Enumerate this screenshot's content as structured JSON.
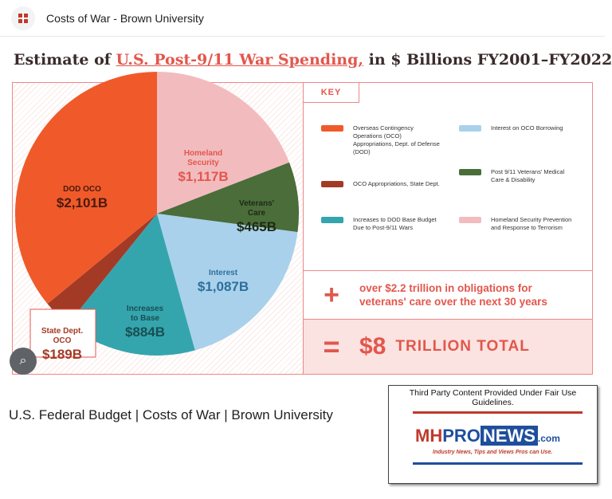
{
  "header": {
    "site": "Costs of War - Brown University"
  },
  "title": {
    "pre": "Estimate of ",
    "highlight": "U.S. Post-9/11 War Spending,",
    "post": " in $ Billions FY2001–FY2022"
  },
  "key": {
    "label": "KEY",
    "items": [
      {
        "text": "Overseas Contingency Operations (OCO) Appropriations, Dept. of Defense (DOD)",
        "color": "#f05a2a"
      },
      {
        "text": "OCO Appropriations, State Dept.",
        "color": "#a33a26"
      },
      {
        "text": "Increases to DOD Base Budget Due to Post-9/11 Wars",
        "color": "#35a5ad"
      },
      {
        "text": "Interest on OCO Borrowing",
        "color": "#a9d1ec"
      },
      {
        "text": "Post 9/11 Veterans' Medical Care & Disability",
        "color": "#4a6d3a"
      },
      {
        "text": "Homeland Security Prevention and Response to Terrorism",
        "color": "#f2bcbf"
      }
    ]
  },
  "plus": {
    "symbol": "+",
    "text": "over $2.2 trillion in obligations for veterans' care over the next 30 years"
  },
  "total": {
    "symbol": "=",
    "amount": "$8",
    "label": "TRILLION TOTAL"
  },
  "chart_data": {
    "type": "pie",
    "title": "Estimate of U.S. Post-9/11 War Spending, in $ Billions FY2001–FY2022",
    "units": "$ Billions",
    "slices": [
      {
        "label": "Homeland Security",
        "value": 1117,
        "display": "$1,117B",
        "color": "#f2bcbf",
        "text_color": "#e2574c"
      },
      {
        "label": "Veterans' Care",
        "value": 465,
        "display": "$465B",
        "color": "#4a6d3a",
        "text_color": "#1e2a14"
      },
      {
        "label": "Interest",
        "value": 1087,
        "display": "$1,087B",
        "color": "#a9d1ec",
        "text_color": "#2f6f9a"
      },
      {
        "label": "Increases to Base",
        "value": 884,
        "display": "$884B",
        "color": "#35a5ad",
        "text_color": "#174f54"
      },
      {
        "label": "State Dept. OCO",
        "value": 189,
        "display": "$189B",
        "color": "#a33a26",
        "text_color": "#a33a26"
      },
      {
        "label": "DOD OCO",
        "value": 2101,
        "display": "$2,101B",
        "color": "#f05a2a",
        "text_color": "#4a1a0c"
      }
    ]
  },
  "caption": "U.S. Federal Budget | Costs of War | Brown University",
  "logo": {
    "fair_use": "Third Party Content Provided Under Fair Use Guidelines.",
    "name": "MHPRONEWS.com",
    "tagline": "Industry News, Tips and Views Pros can Use."
  }
}
